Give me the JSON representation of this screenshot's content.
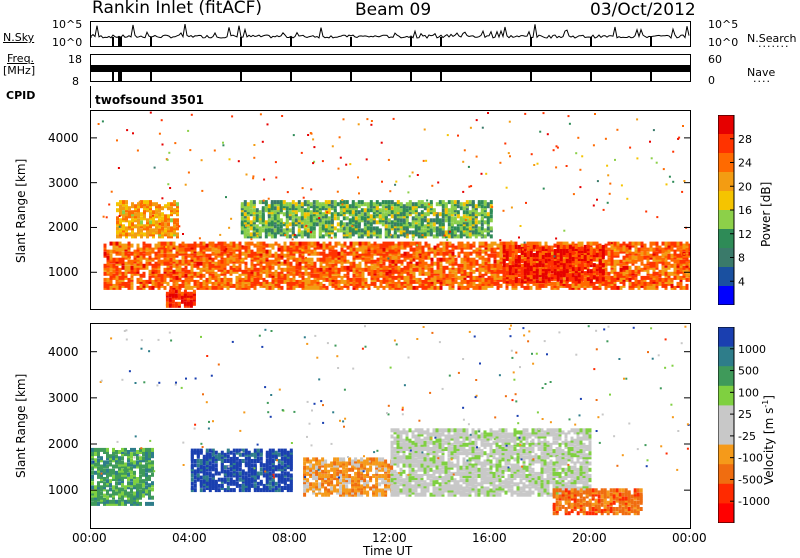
{
  "header": {
    "site": "Rankin Inlet (fitACF)",
    "beam": "Beam 09",
    "date": "03/Oct/2012"
  },
  "nsky_panel": {
    "left_label": "N.Sky",
    "right_label": "N.Search",
    "left_ticks": [
      "10^5",
      "10^0"
    ],
    "right_ticks": [
      "10^5",
      "10^0"
    ]
  },
  "freq_panel": {
    "left_label_top": "Freq.",
    "left_label_unit": "[MHz]",
    "right_label": "Nave",
    "left_ticks": [
      "18",
      "8"
    ],
    "right_ticks": [
      "60",
      "0"
    ]
  },
  "cpid_panel": {
    "label": "CPID",
    "value": "twofsound 3501"
  },
  "power_panel": {
    "colorbar_title": "Power [dB]",
    "colorbar_ticks": [
      "28",
      "24",
      "20",
      "16",
      "12",
      "8",
      "4"
    ],
    "colorbar_colors": [
      "#e60000",
      "#ff3300",
      "#ff6a00",
      "#f39c12",
      "#f5c400",
      "#8cd049",
      "#2e8b57",
      "#3a7a6a",
      "#1a50a0",
      "#0000ff"
    ]
  },
  "velocity_panel": {
    "colorbar_title": "Velocity [m s^-1]",
    "colorbar_ticks": [
      "1000",
      "500",
      "100",
      "25",
      "-25",
      "-100",
      "-500",
      "-1000"
    ],
    "colorbar_colors": [
      "#1a3fb0",
      "#2e7d8a",
      "#3f9a5a",
      "#7fd040",
      "#c8c8c8",
      "#c8c8c8",
      "#f59a1a",
      "#f06d10",
      "#ff2a00",
      "#ff0000"
    ]
  },
  "x_axis": {
    "label": "Time UT",
    "ticks": [
      "00:00",
      "04:00",
      "08:00",
      "12:00",
      "16:00",
      "20:00",
      "00:00"
    ]
  },
  "chart_data": [
    {
      "type": "heatmap",
      "title": "Power",
      "xlabel": "Time UT",
      "ylabel": "Slant Range [km]",
      "xlim": [
        "00:00",
        "24:00"
      ],
      "ylim": [
        180,
        4600
      ],
      "y_ticks": [
        1000,
        2000,
        3000,
        4000
      ],
      "colorbar": {
        "label": "Power [dB]",
        "range": [
          0,
          32
        ],
        "ticks": [
          4,
          8,
          12,
          16,
          20,
          24,
          28
        ]
      },
      "bands": [
        {
          "t_start": 0.5,
          "t_end": 24,
          "range_low": 650,
          "range_high": 1650,
          "power_db": 26
        },
        {
          "t_start": 3.0,
          "t_end": 4.2,
          "range_low": 250,
          "range_high": 600,
          "power_db": 30
        },
        {
          "t_start": 1.0,
          "t_end": 3.5,
          "range_low": 1800,
          "range_high": 2600,
          "power_db": 22
        },
        {
          "t_start": 6.0,
          "t_end": 16.0,
          "range_low": 1800,
          "range_high": 2600,
          "power_db": 14
        },
        {
          "t_start": 16.5,
          "t_end": 20.5,
          "range_low": 800,
          "range_high": 1600,
          "power_db": 30
        }
      ]
    },
    {
      "type": "heatmap",
      "title": "Velocity",
      "xlabel": "Time UT",
      "ylabel": "Slant Range [km]",
      "xlim": [
        "00:00",
        "24:00"
      ],
      "ylim": [
        180,
        4600
      ],
      "y_ticks": [
        1000,
        2000,
        3000,
        4000
      ],
      "colorbar": {
        "label": "Velocity [m s^-1]",
        "range": [
          -1000,
          1000
        ],
        "ticks": [
          -1000,
          -500,
          -100,
          -25,
          25,
          100,
          500,
          1000
        ]
      },
      "bands": [
        {
          "t_start": 0.0,
          "t_end": 2.5,
          "range_low": 700,
          "range_high": 1900,
          "velocity": 100
        },
        {
          "t_start": 4.0,
          "t_end": 8.0,
          "range_low": 1000,
          "range_high": 1900,
          "velocity": 800
        },
        {
          "t_start": 8.5,
          "t_end": 12.0,
          "range_low": 900,
          "range_high": 1700,
          "velocity": -150
        },
        {
          "t_start": 12.0,
          "t_end": 20.0,
          "range_low": 900,
          "range_high": 2300,
          "velocity": 0
        },
        {
          "t_start": 18.5,
          "t_end": 22.0,
          "range_low": 500,
          "range_high": 1000,
          "velocity": -300
        }
      ]
    }
  ]
}
